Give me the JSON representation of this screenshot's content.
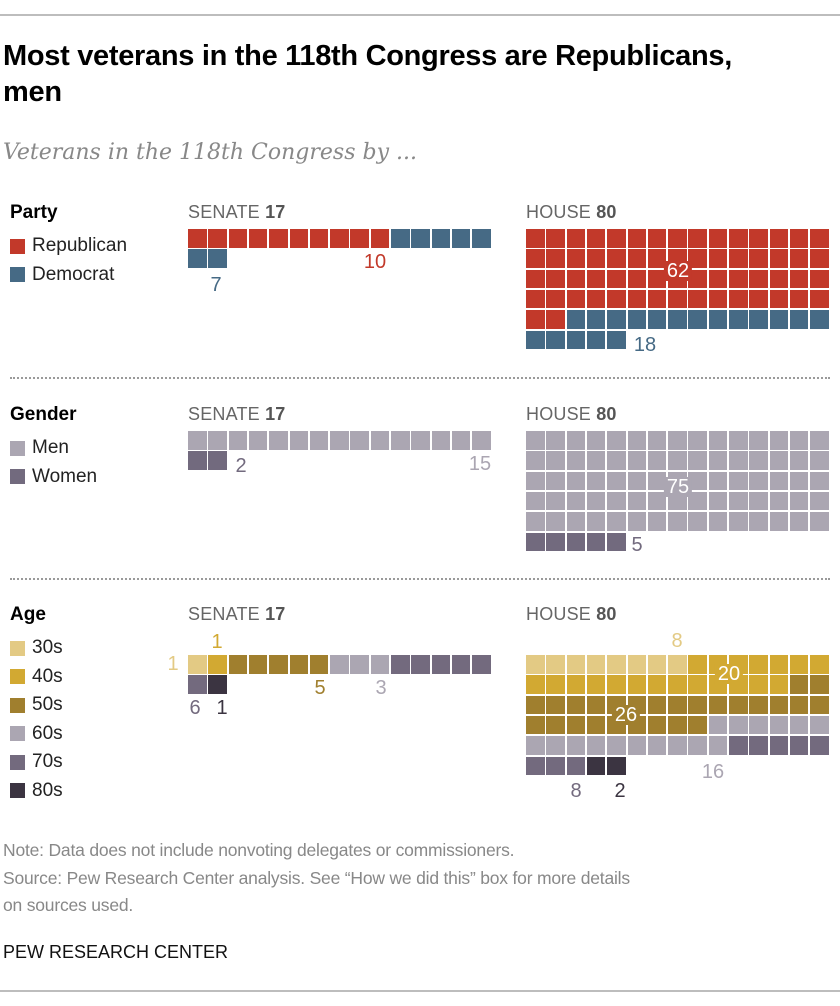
{
  "title": "Most veterans in the 118th Congress are Republicans, men",
  "subtitle": "Veterans in the 118th Congress by ...",
  "chart_data": {
    "type": "waffle",
    "sections": [
      {
        "title": "Party",
        "legend": [
          {
            "label": "Republican",
            "color": "#C2392A"
          },
          {
            "label": "Democrat",
            "color": "#466A85"
          }
        ],
        "charts": [
          {
            "chamber": "SENATE",
            "total": "17",
            "values": [
              10,
              7
            ],
            "labels": [
              "10",
              "7"
            ]
          },
          {
            "chamber": "HOUSE",
            "total": "80",
            "values": [
              62,
              18
            ],
            "labels": [
              "62",
              "18"
            ]
          }
        ]
      },
      {
        "title": "Gender",
        "legend": [
          {
            "label": "Men",
            "color": "#ABA6B2"
          },
          {
            "label": "Women",
            "color": "#726A7E"
          }
        ],
        "charts": [
          {
            "chamber": "SENATE",
            "total": "17",
            "values": [
              15,
              2
            ],
            "labels": [
              "15",
              "2"
            ]
          },
          {
            "chamber": "HOUSE",
            "total": "80",
            "values": [
              75,
              5
            ],
            "labels": [
              "75",
              "5"
            ]
          }
        ]
      },
      {
        "title": "Age",
        "legend": [
          {
            "label": "30s",
            "color": "#E3CA84"
          },
          {
            "label": "40s",
            "color": "#D2A932"
          },
          {
            "label": "50s",
            "color": "#A07F2E"
          },
          {
            "label": "60s",
            "color": "#ABA6B2"
          },
          {
            "label": "70s",
            "color": "#736A7E"
          },
          {
            "label": "80s",
            "color": "#3B3441"
          }
        ],
        "charts": [
          {
            "chamber": "SENATE",
            "total": "17",
            "values": [
              1,
              1,
              5,
              3,
              6,
              1
            ],
            "labels": [
              "1",
              "1",
              "5",
              "3",
              "6",
              "1"
            ]
          },
          {
            "chamber": "HOUSE",
            "total": "80",
            "values": [
              8,
              20,
              26,
              16,
              8,
              2
            ],
            "labels": [
              "8",
              "20",
              "26",
              "16",
              "8",
              "2"
            ]
          }
        ]
      }
    ]
  },
  "footer": {
    "note": "Note: Data does not include nonvoting delegates or commissioners.",
    "source_line1": "Source: Pew Research Center analysis. See “How we did this” box for more details",
    "source_line2": "on sources used.",
    "brand": "PEW RESEARCH CENTER"
  }
}
